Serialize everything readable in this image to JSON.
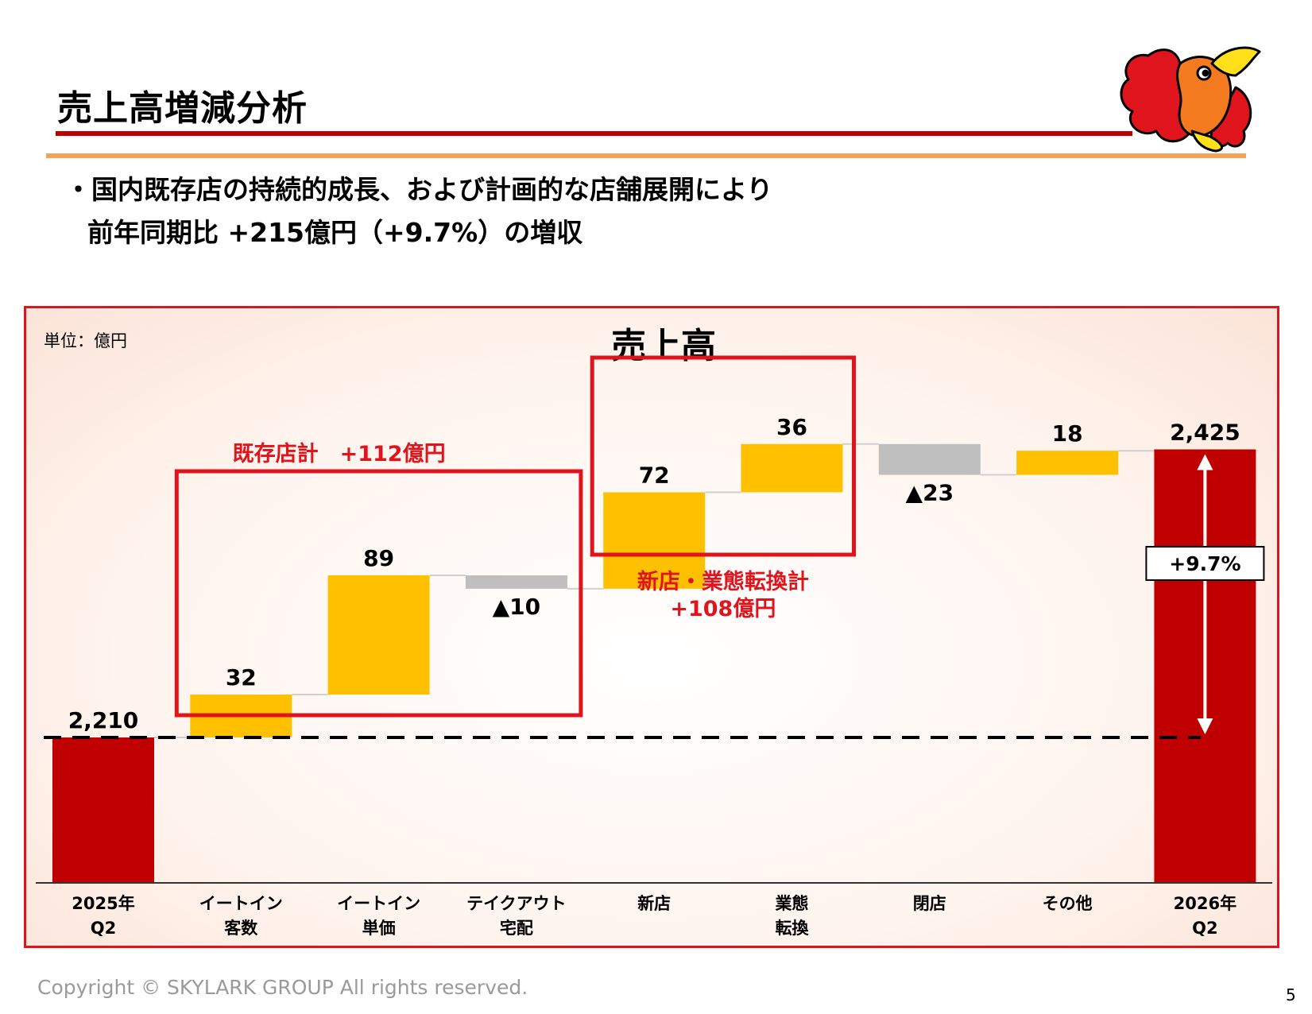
{
  "header": {
    "title": "売上高増減分析"
  },
  "bullet": {
    "line1": "・国内既存店の持続的成長、および計画的な店舗展開により",
    "line2": "前年同期比 +215億円（+9.7%）の増収"
  },
  "chart_data": {
    "type": "bar",
    "title": "売上高",
    "unit_label": "単位：億円",
    "categories": [
      [
        "2025年",
        "Q2"
      ],
      [
        "イートイン",
        "客数"
      ],
      [
        "イートイン",
        "単価"
      ],
      [
        "テイクアウト",
        "宅配"
      ],
      [
        "新店",
        ""
      ],
      [
        "業態",
        "転換"
      ],
      [
        "閉店",
        ""
      ],
      [
        "その他",
        ""
      ],
      [
        "2026年",
        "Q2"
      ]
    ],
    "values": [
      2210,
      32,
      89,
      -10,
      72,
      36,
      -23,
      18,
      2425
    ],
    "value_labels": [
      "2,210",
      "32",
      "89",
      "▲10",
      "72",
      "36",
      "▲23",
      "18",
      "2,425"
    ],
    "kinds": [
      "total",
      "increase",
      "increase",
      "decrease",
      "increase",
      "increase",
      "decrease",
      "increase",
      "total"
    ],
    "baseline_reference": 2210,
    "annotations": {
      "existing_group": "既存店計　+112億円",
      "new_group_line1": "新店・業態転換計",
      "new_group_line2": "+108億円",
      "growth": "+9.7%"
    },
    "colors": {
      "total": "#c00000",
      "increase": "#ffc000",
      "decrease": "#bfbfbf",
      "highlight": "#e0141c"
    }
  },
  "footer": {
    "copyright": "Copyright © SKYLARK GROUP All rights reserved.",
    "page": "5"
  }
}
